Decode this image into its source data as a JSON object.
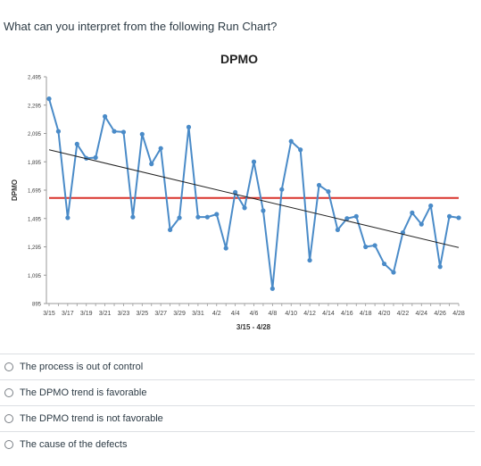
{
  "question": "What can you interpret from the following Run Chart?",
  "chart_data": {
    "type": "line",
    "title": "DPMO",
    "xlabel": "3/15 - 4/28",
    "ylabel": "DPMO",
    "ylim": [
      895,
      2495
    ],
    "yticks": [
      "2,495",
      "2,295",
      "2,095",
      "1,895",
      "1,695",
      "1,495",
      "1,295",
      "1,095",
      "895"
    ],
    "ytick_values": [
      2495,
      2295,
      2095,
      1895,
      1695,
      1495,
      1295,
      1095,
      895
    ],
    "xtick_labels": [
      "3/15",
      "3/17",
      "3/19",
      "3/21",
      "3/23",
      "3/25",
      "3/27",
      "3/29",
      "3/31",
      "4/2",
      "4/4",
      "4/6",
      "4/8",
      "4/10",
      "4/12",
      "4/14",
      "4/16",
      "4/18",
      "4/20",
      "4/22",
      "4/24",
      "4/26",
      "4/28"
    ],
    "x": [
      "3/15",
      "3/16",
      "3/17",
      "3/18",
      "3/19",
      "3/20",
      "3/21",
      "3/22",
      "3/23",
      "3/24",
      "3/25",
      "3/26",
      "3/27",
      "3/28",
      "3/29",
      "3/30",
      "3/31",
      "4/1",
      "4/2",
      "4/3",
      "4/4",
      "4/5",
      "4/6",
      "4/7",
      "4/8",
      "4/9",
      "4/10",
      "4/11",
      "4/12",
      "4/13",
      "4/14",
      "4/15",
      "4/16",
      "4/17",
      "4/18",
      "4/19",
      "4/20",
      "4/21",
      "4/22",
      "4/23",
      "4/24",
      "4/25",
      "4/26",
      "4/27",
      "4/28"
    ],
    "series": [
      {
        "values": [
          2340,
          2110,
          1500,
          2020,
          1920,
          1925,
          2215,
          2110,
          2105,
          1505,
          2090,
          1880,
          1990,
          1415,
          1500,
          2140,
          1505,
          1505,
          1525,
          1285,
          1680,
          1570,
          1895,
          1550,
          1000,
          1700,
          2040,
          1980,
          1200,
          1730,
          1685,
          1415,
          1495,
          1510,
          1295,
          1305,
          1175,
          1115,
          1395,
          1535,
          1455,
          1585,
          1155,
          1510,
          1500
        ],
        "color": "#4a8bc8"
      }
    ],
    "reference_line": {
      "value": 1640,
      "color": "#d9342b"
    },
    "trendline": {
      "start": 1980,
      "end": 1290,
      "color": "#222222"
    },
    "grid": false
  },
  "options": [
    {
      "label": "The process is out of control"
    },
    {
      "label": "The DPMO trend is favorable"
    },
    {
      "label": "The DPMO trend is not favorable"
    },
    {
      "label": "The cause of the defects"
    }
  ]
}
